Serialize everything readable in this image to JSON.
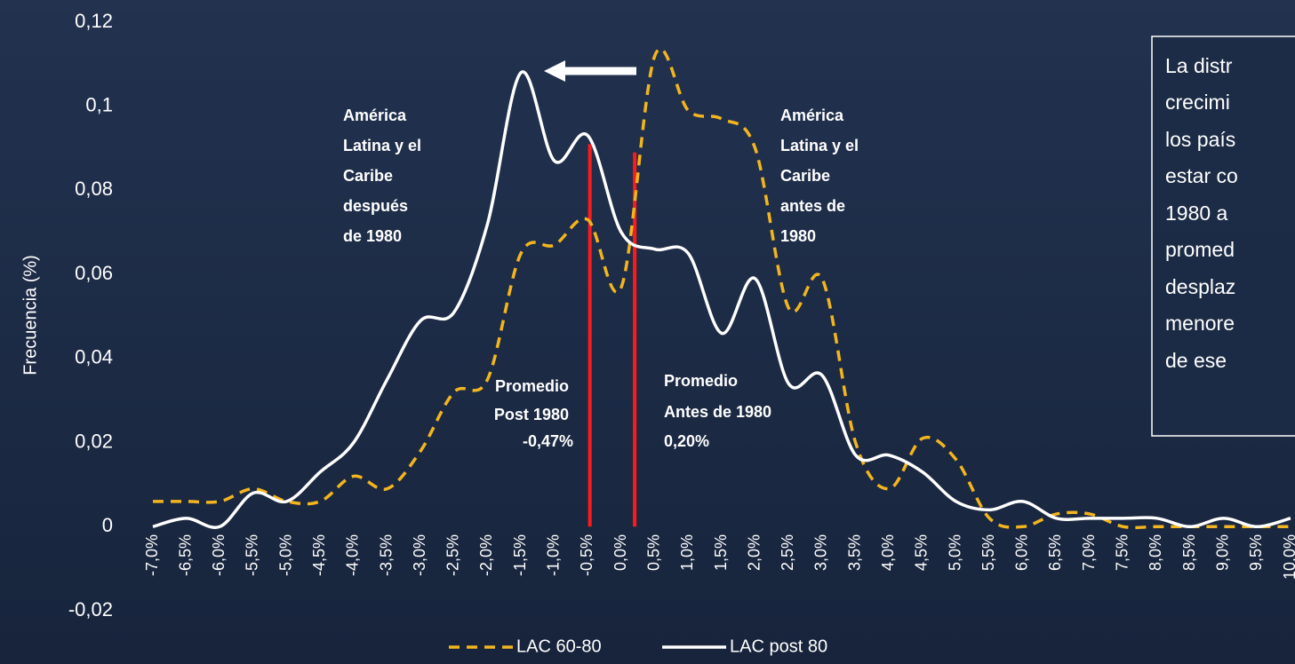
{
  "chart_data": {
    "type": "line",
    "y_label": "Frecuencia (%)",
    "categories": [
      "-7,0%",
      "-6,5%",
      "-6,0%",
      "-5,5%",
      "-5,0%",
      "-4,5%",
      "-4,0%",
      "-3,5%",
      "-3,0%",
      "-2,5%",
      "-2,0%",
      "-1,5%",
      "-1,0%",
      "-0,5%",
      "0,0%",
      "0,5%",
      "1,0%",
      "1,5%",
      "2,0%",
      "2,5%",
      "3,0%",
      "3,5%",
      "4,0%",
      "4,5%",
      "5,0%",
      "5,5%",
      "6,0%",
      "6,5%",
      "7,0%",
      "7,5%",
      "8,0%",
      "8,5%",
      "9,0%",
      "9,5%",
      "10,0%"
    ],
    "xlim": [
      -7,
      10
    ],
    "ylim": [
      -0.02,
      0.12
    ],
    "yticks": [
      {
        "value": -0.02,
        "label": "-0,02"
      },
      0,
      {
        "value": 0.02,
        "label": "0,02"
      },
      {
        "value": 0.04,
        "label": "0,04"
      },
      {
        "value": 0.06,
        "label": "0,06"
      },
      {
        "value": 0.08,
        "label": "0,08"
      },
      {
        "value": 0.1,
        "label": "0,1"
      },
      {
        "value": 0.12,
        "label": "0,12"
      }
    ],
    "series": [
      {
        "name": "LAC 60-80",
        "color": "#f2b51f",
        "dashed": true,
        "values": [
          0.006,
          0.006,
          0.006,
          0.009,
          0.006,
          0.006,
          0.012,
          0.009,
          0.018,
          0.032,
          0.035,
          0.065,
          0.067,
          0.073,
          0.057,
          0.112,
          0.099,
          0.097,
          0.09,
          0.052,
          0.059,
          0.02,
          0.009,
          0.021,
          0.016,
          0.002,
          0,
          0.003,
          0.003,
          0,
          0,
          0,
          0,
          0,
          0
        ]
      },
      {
        "name": "LAC post 80",
        "color": "#ffffff",
        "dashed": false,
        "values": [
          0,
          0.002,
          0,
          0.008,
          0.006,
          0.013,
          0.02,
          0.035,
          0.049,
          0.051,
          0.072,
          0.108,
          0.087,
          0.093,
          0.07,
          0.066,
          0.065,
          0.046,
          0.059,
          0.034,
          0.036,
          0.017,
          0.017,
          0.013,
          0.006,
          0.004,
          0.006,
          0.002,
          0.002,
          0.002,
          0.002,
          0,
          0.002,
          0,
          0.002
        ]
      }
    ],
    "mean_lines": [
      {
        "x": -0.47,
        "top": 0.091,
        "color": "#ff1a1a"
      },
      {
        "x": 0.2,
        "top": 0.089,
        "color": "#ff1a1a"
      }
    ],
    "annotations": [
      {
        "lines": [
          "América",
          "Latina y el",
          "Caribe",
          "después",
          "de 1980"
        ]
      },
      {
        "lines": [
          "América",
          "Latina y el",
          "Caribe",
          "antes de",
          "1980"
        ]
      },
      {
        "lines": [
          "Promedio",
          "Post 1980",
          "-0,47%"
        ]
      },
      {
        "lines": [
          "Promedio",
          "Antes de 1980",
          "0,20%"
        ]
      }
    ],
    "text_box": {
      "lines": [
        "La distr",
        "crecimi",
        "los país",
        "estar co",
        "1980 a",
        "promed",
        "desplaz",
        "menore",
        "de ese"
      ]
    }
  }
}
